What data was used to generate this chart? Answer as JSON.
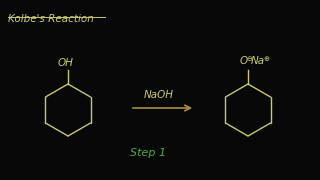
{
  "background_color": "#080808",
  "title": "Kolbe's Reaction",
  "title_color": "#c8c87a",
  "title_fontsize": 7.5,
  "reagent_label": "NaOH",
  "reagent_color": "#c8c87a",
  "step_label": "Step 1",
  "step_color": "#4aaa4a",
  "arrow_color": "#a89040",
  "structure_color": "#c8c87a",
  "oh_label": "OH",
  "ona_label": "O",
  "ona_minus": "⊖",
  "na_label": "Na",
  "na_plus": "⊕"
}
